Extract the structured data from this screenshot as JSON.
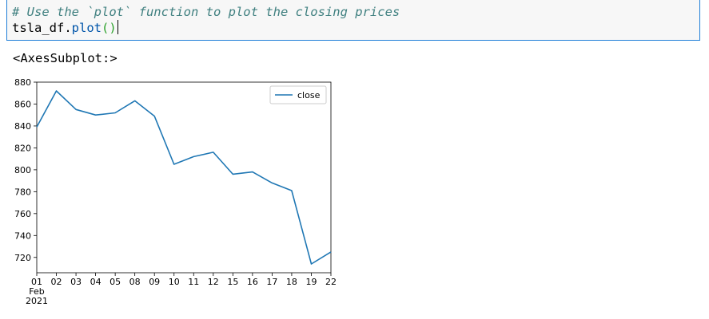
{
  "cell": {
    "comment": "# Use the `plot` function to plot the closing prices",
    "code_prefix": "tsla_df.",
    "code_func": "plot",
    "code_parens": "()"
  },
  "output": {
    "repr": "<AxesSubplot:>"
  },
  "chart_data": {
    "type": "line",
    "x": [
      "01",
      "02",
      "03",
      "04",
      "05",
      "08",
      "09",
      "10",
      "11",
      "12",
      "15",
      "16",
      "17",
      "18",
      "19",
      "22"
    ],
    "xtick_sub": [
      "Feb",
      "2021"
    ],
    "series": [
      {
        "name": "close",
        "color": "#1f77b4",
        "values": [
          839,
          872,
          855,
          850,
          852,
          863,
          849,
          805,
          812,
          816,
          796,
          798,
          788,
          781,
          714,
          725
        ]
      }
    ],
    "ylim": [
      706,
      880
    ],
    "yticks": [
      720,
      740,
      760,
      780,
      800,
      820,
      840,
      860,
      880
    ],
    "legend": "top-right",
    "grid": false
  }
}
